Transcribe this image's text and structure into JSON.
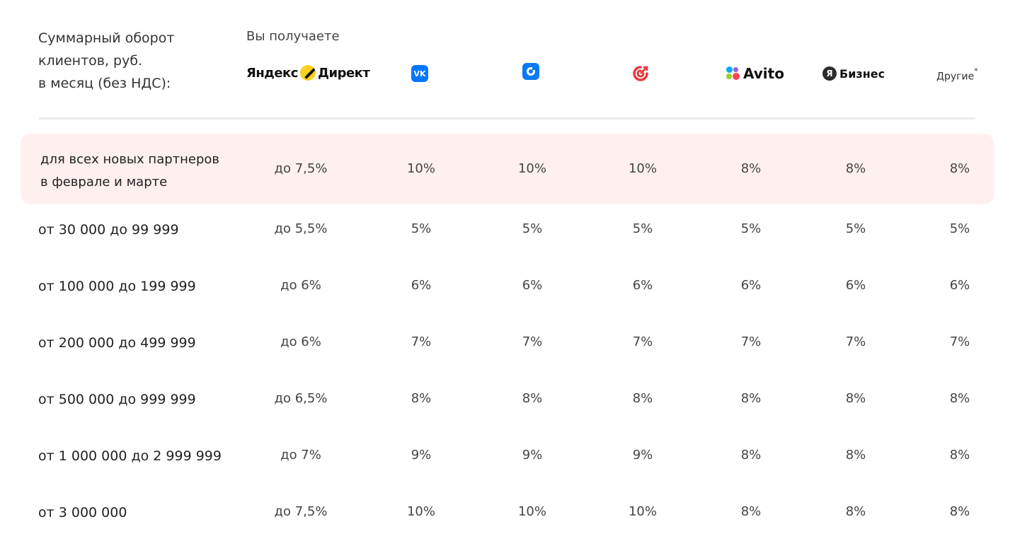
{
  "header": {
    "turnover_label": "Суммарный оборот\nклиентов, руб.\nв месяц (без НДС):",
    "you_get_label": "Вы получаете",
    "platforms": [
      {
        "name": "Яндекс Директ",
        "icon": "yandex-direct-logo"
      },
      {
        "name": "VK",
        "icon": "vk-logo"
      },
      {
        "name": "MyTarget",
        "icon": "mytarget-logo"
      },
      {
        "name": "My",
        "icon": "mail-target-logo"
      },
      {
        "name": "Avito",
        "icon": "avito-logo"
      },
      {
        "name": "Бизнес",
        "icon": "yandex-business-logo"
      },
      {
        "name": "Другие",
        "footnote": "*"
      }
    ],
    "yandex_direct_text_1": "Яндекс",
    "yandex_direct_text_2": "Директ",
    "vk_text": "VK",
    "avito_text": "Avito",
    "yandex_business_letter": "Я",
    "yandex_business_text": "Бизнес",
    "others_text": "Другие",
    "others_footnote": "*"
  },
  "colors": {
    "highlight_bg": "#fff0ef",
    "divider": "#ececec",
    "vk_blue": "#0077ff",
    "mytarget_blue": "#0a7af3",
    "my_red": "#e8383d",
    "yandex_yellow": "#fcd11f"
  },
  "rows": [
    {
      "label": "для всех новых партнеров\nв феврале и марте",
      "highlighted": true,
      "values": [
        "до 7,5%",
        "10%",
        "10%",
        "10%",
        "8%",
        "8%",
        "8%"
      ]
    },
    {
      "label": "от 30 000 до 99 999",
      "values": [
        "до 5,5%",
        "5%",
        "5%",
        "5%",
        "5%",
        "5%",
        "5%"
      ]
    },
    {
      "label": "от 100 000 до 199 999",
      "values": [
        "до 6%",
        "6%",
        "6%",
        "6%",
        "6%",
        "6%",
        "6%"
      ]
    },
    {
      "label": "от 200 000 до 499 999",
      "values": [
        "до 6%",
        "7%",
        "7%",
        "7%",
        "7%",
        "7%",
        "7%"
      ]
    },
    {
      "label": "от 500 000 до 999 999",
      "values": [
        "до 6,5%",
        "8%",
        "8%",
        "8%",
        "8%",
        "8%",
        "8%"
      ]
    },
    {
      "label": "от 1 000 000 до 2 999 999",
      "values": [
        "до 7%",
        "9%",
        "9%",
        "9%",
        "8%",
        "8%",
        "8%"
      ]
    },
    {
      "label": "от 3 000 000",
      "values": [
        "до 7,5%",
        "10%",
        "10%",
        "10%",
        "8%",
        "8%",
        "8%"
      ]
    }
  ]
}
